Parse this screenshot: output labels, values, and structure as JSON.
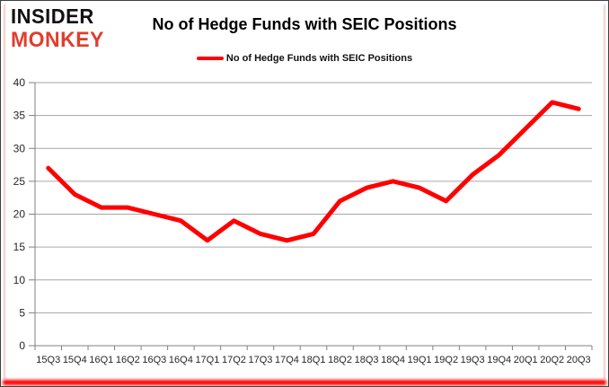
{
  "logo": {
    "line1": "INSIDER",
    "line2": "MONKEY",
    "line1_color": "#111111",
    "line2_color": "#e03e2d"
  },
  "title": "No of Hedge Funds with SEIC Positions",
  "legend": {
    "label": "No of Hedge Funds with SEIC Positions",
    "color": "#ff0000"
  },
  "chart_data": {
    "type": "line",
    "title": "No of Hedge Funds with SEIC Positions",
    "categories": [
      "15Q3",
      "15Q4",
      "16Q1",
      "16Q2",
      "16Q3",
      "16Q4",
      "17Q1",
      "17Q2",
      "17Q3",
      "17Q4",
      "18Q1",
      "18Q2",
      "18Q3",
      "18Q4",
      "19Q1",
      "19Q2",
      "19Q3",
      "19Q4",
      "20Q1",
      "20Q2",
      "20Q3"
    ],
    "series": [
      {
        "name": "No of Hedge Funds with SEIC Positions",
        "color": "#ff0000",
        "values": [
          27,
          23,
          21,
          21,
          20,
          19,
          16,
          19,
          17,
          16,
          17,
          22,
          24,
          25,
          24,
          22,
          26,
          29,
          33,
          37,
          36
        ]
      }
    ],
    "xlabel": "",
    "ylabel": "",
    "ylim": [
      0,
      40
    ],
    "ytick_step": 5,
    "grid": "horizontal",
    "legend_position": "top-center",
    "gridline_color": "#a6a6a6",
    "axis_color": "#808080",
    "tick_label_color": "#262626"
  }
}
